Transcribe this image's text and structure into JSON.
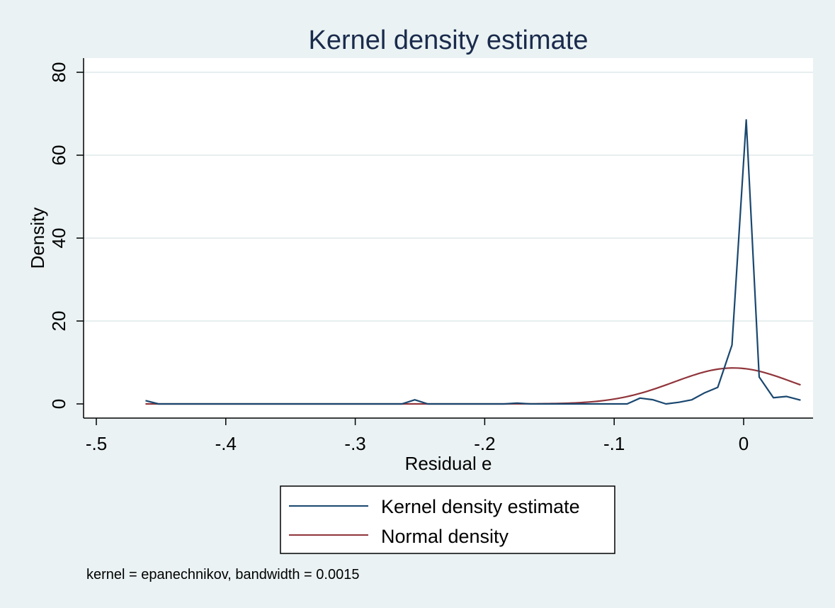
{
  "chart_data": {
    "type": "line",
    "title": "Kernel density estimate",
    "xlabel": "Residual e",
    "ylabel": "Density",
    "xlim": [
      -0.5,
      0.045
    ],
    "ylim": [
      0,
      80
    ],
    "x_ticks": [
      -0.5,
      -0.4,
      -0.3,
      -0.2,
      -0.1,
      0
    ],
    "x_tick_labels": [
      "-.5",
      "-.4",
      "-.3",
      "-.2",
      "-.1",
      "0"
    ],
    "y_ticks": [
      0,
      20,
      40,
      60,
      80
    ],
    "y_tick_labels": [
      "0",
      "20",
      "40",
      "60",
      "80"
    ],
    "grid": "horizontal",
    "legend_position": "bottom",
    "note": "kernel = epanechnikov, bandwidth = 0.0015",
    "series": [
      {
        "name": "Kernel density estimate",
        "color": "#1a476f",
        "points": [
          [
            -0.462,
            0.8
          ],
          [
            -0.452,
            0.0
          ],
          [
            -0.42,
            0.0
          ],
          [
            -0.38,
            0.0
          ],
          [
            -0.34,
            0.0
          ],
          [
            -0.3,
            0.0
          ],
          [
            -0.264,
            0.0
          ],
          [
            -0.254,
            1.0
          ],
          [
            -0.244,
            0.0
          ],
          [
            -0.2,
            0.0
          ],
          [
            -0.185,
            0.0
          ],
          [
            -0.175,
            0.2
          ],
          [
            -0.165,
            0.0
          ],
          [
            -0.13,
            0.0
          ],
          [
            -0.1,
            0.0
          ],
          [
            -0.09,
            0.0
          ],
          [
            -0.08,
            1.4
          ],
          [
            -0.07,
            1.0
          ],
          [
            -0.06,
            0.0
          ],
          [
            -0.05,
            0.4
          ],
          [
            -0.04,
            1.0
          ],
          [
            -0.03,
            2.7
          ],
          [
            -0.02,
            4.0
          ],
          [
            -0.009,
            14.2
          ],
          [
            0.002,
            68.5
          ],
          [
            0.012,
            6.5
          ],
          [
            0.023,
            1.5
          ],
          [
            0.033,
            1.8
          ],
          [
            0.044,
            0.9
          ]
        ]
      },
      {
        "name": "Normal density",
        "color": "#90353b",
        "mean": -0.008,
        "sd": 0.046,
        "x_range": [
          -0.462,
          0.044
        ]
      }
    ]
  }
}
